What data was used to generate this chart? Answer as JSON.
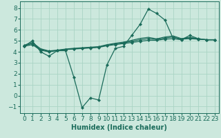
{
  "xlabel": "Humidex (Indice chaleur)",
  "xlim": [
    -0.5,
    23.5
  ],
  "ylim": [
    -1.6,
    8.6
  ],
  "yticks": [
    -1,
    0,
    1,
    2,
    3,
    4,
    5,
    6,
    7,
    8
  ],
  "xticks": [
    0,
    1,
    2,
    3,
    4,
    5,
    6,
    7,
    8,
    9,
    10,
    11,
    12,
    13,
    14,
    15,
    16,
    17,
    18,
    19,
    20,
    21,
    22,
    23
  ],
  "bg_color": "#cce8dd",
  "line_color": "#1a6b5a",
  "grid_color": "#aad4c4",
  "tick_fontsize": 6.5,
  "line1_y": [
    4.5,
    5.0,
    4.0,
    3.6,
    4.1,
    4.1,
    1.7,
    -1.1,
    -0.2,
    -0.4,
    2.8,
    4.3,
    4.5,
    5.5,
    6.5,
    7.9,
    7.5,
    6.9,
    5.2,
    5.1,
    5.5,
    5.2,
    5.1,
    5.1
  ],
  "line2_y": [
    4.5,
    4.65,
    4.15,
    4.0,
    4.1,
    4.2,
    4.25,
    4.3,
    4.35,
    4.4,
    4.55,
    4.65,
    4.75,
    4.85,
    4.95,
    5.05,
    5.05,
    5.15,
    5.2,
    5.15,
    5.2,
    5.15,
    5.1,
    5.1
  ],
  "line3_y": [
    4.55,
    4.75,
    4.2,
    4.05,
    4.12,
    4.22,
    4.28,
    4.33,
    4.38,
    4.43,
    4.6,
    4.72,
    4.82,
    4.95,
    5.1,
    5.2,
    5.12,
    5.25,
    5.35,
    5.15,
    5.28,
    5.15,
    5.1,
    5.1
  ],
  "line4_y": [
    4.6,
    4.85,
    4.28,
    4.08,
    4.15,
    4.25,
    4.32,
    4.37,
    4.42,
    4.47,
    4.65,
    4.78,
    4.88,
    5.05,
    5.22,
    5.32,
    5.18,
    5.35,
    5.45,
    5.2,
    5.32,
    5.2,
    5.1,
    5.1
  ]
}
